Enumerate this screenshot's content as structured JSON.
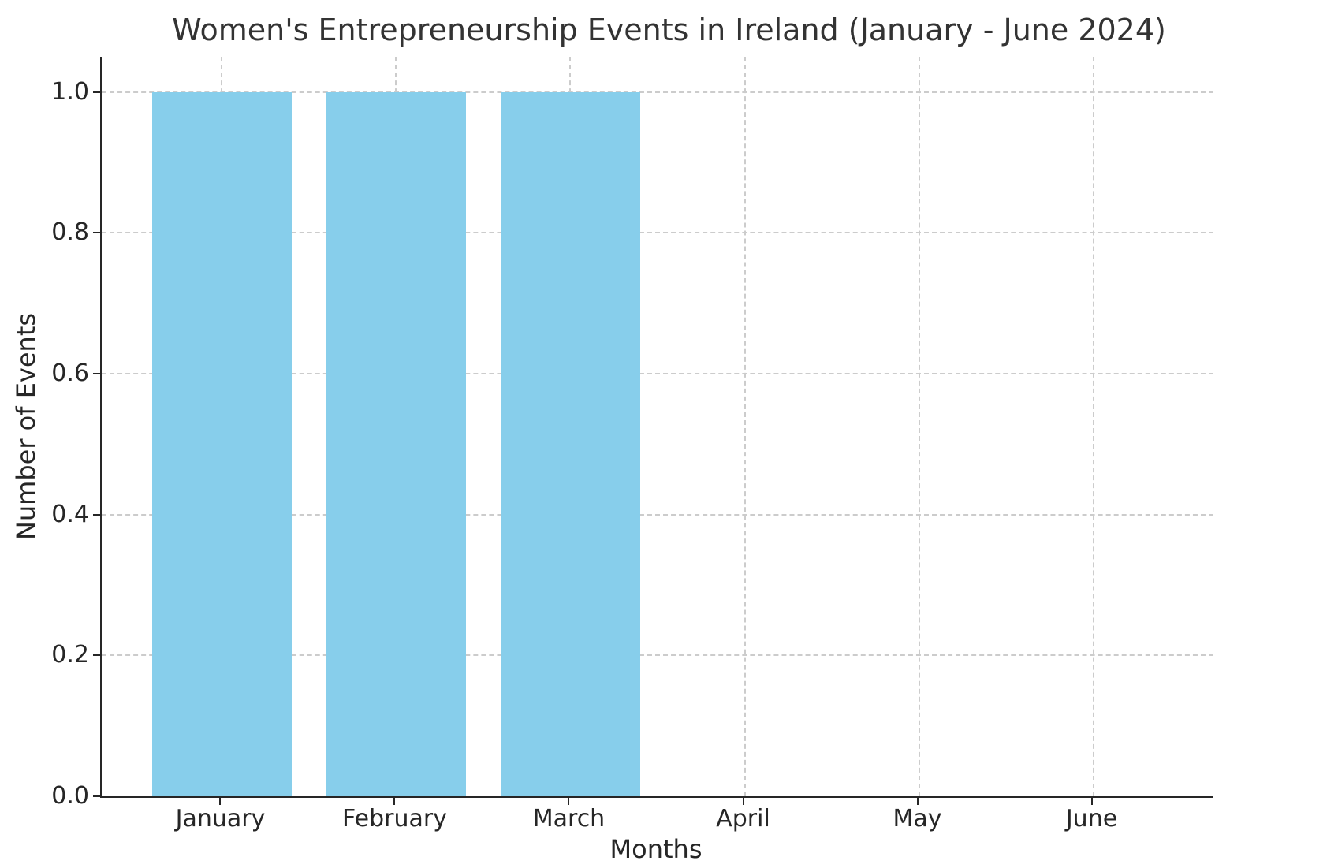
{
  "chart_data": {
    "type": "bar",
    "title": "Women's Entrepreneurship Events in Ireland (January - June 2024)",
    "xlabel": "Months",
    "ylabel": "Number of Events",
    "categories": [
      "January",
      "February",
      "March",
      "April",
      "May",
      "June"
    ],
    "values": [
      1,
      1,
      1,
      0,
      0,
      0
    ],
    "yticks": [
      0.0,
      0.2,
      0.4,
      0.6,
      0.8,
      1.0
    ],
    "ytick_labels": [
      "0.0",
      "0.2",
      "0.4",
      "0.6",
      "0.8",
      "1.0"
    ],
    "ylim": [
      0,
      1.05
    ],
    "bar_color": "#87CEEB",
    "grid_color": "#cccccc",
    "grid_style": "dashed",
    "grid": "both-axes",
    "legend": "none",
    "bar_width_fraction": 0.8
  }
}
